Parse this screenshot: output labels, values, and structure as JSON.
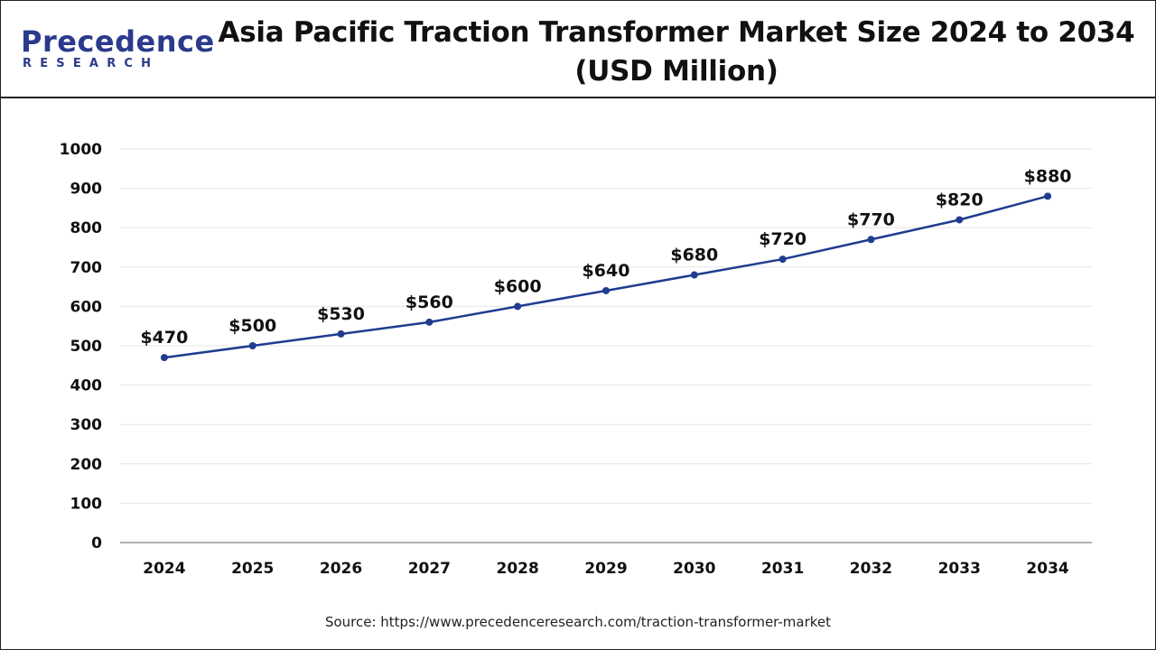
{
  "header": {
    "logo_main": "Precedence",
    "logo_sub": "RESEARCH",
    "title_line1": "Asia Pacific Traction Transformer Market Size 2024 to 2034",
    "title_line2": "(USD Million)"
  },
  "source": "Source: https://www.precedenceresearch.com/traction-transformer-market",
  "colors": {
    "line": "#1f3c8f",
    "brand": "#2b3a8c",
    "grid": "#e6e6e6"
  },
  "chart_data": {
    "type": "line",
    "title": "Asia Pacific Traction Transformer Market Size 2024 to 2034 (USD Million)",
    "xlabel": "",
    "ylabel": "",
    "categories": [
      "2024",
      "2025",
      "2026",
      "2027",
      "2028",
      "2029",
      "2030",
      "2031",
      "2032",
      "2033",
      "2034"
    ],
    "values": [
      470,
      500,
      530,
      560,
      600,
      640,
      680,
      720,
      770,
      820,
      880
    ],
    "data_labels": [
      "$470",
      "$500",
      "$530",
      "$560",
      "$600",
      "$640",
      "$680",
      "$720",
      "$770",
      "$820",
      "$880"
    ],
    "ylim": [
      0,
      1000
    ],
    "yticks": [
      "0",
      "100",
      "200",
      "300",
      "400",
      "500",
      "600",
      "700",
      "800",
      "900",
      "1000"
    ],
    "grid": true,
    "legend": "none"
  }
}
